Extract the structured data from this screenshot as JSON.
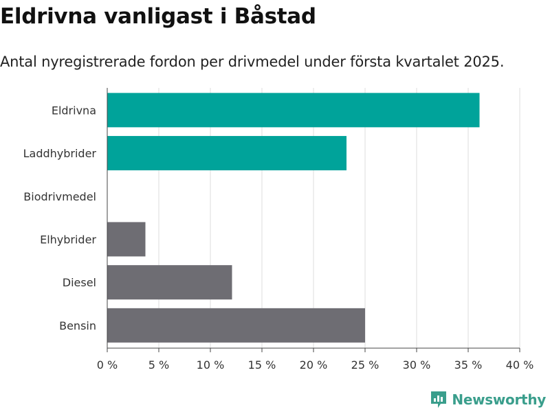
{
  "title": "Eldrivna vanligast i Båstad",
  "subtitle": "Antal nyregistrerade fordon per drivmedel under första kvartalet 2025.",
  "brand": "Newsworthy",
  "colors": {
    "highlight": "#00a39a",
    "default": "#6e6d73",
    "grid": "#dddddd",
    "brand": "#3a9e8c"
  },
  "chart_data": {
    "type": "bar",
    "orientation": "horizontal",
    "categories": [
      "Eldrivna",
      "Laddhybrider",
      "Biodrivmedel",
      "Elhybrider",
      "Diesel",
      "Bensin"
    ],
    "values": [
      36.1,
      23.2,
      0,
      3.7,
      12.1,
      25.0
    ],
    "highlighted": [
      true,
      true,
      false,
      false,
      false,
      false
    ],
    "xlim": [
      0,
      40
    ],
    "xticks": [
      0,
      5,
      10,
      15,
      20,
      25,
      30,
      35,
      40
    ],
    "tick_suffix": " %",
    "grid": true
  }
}
